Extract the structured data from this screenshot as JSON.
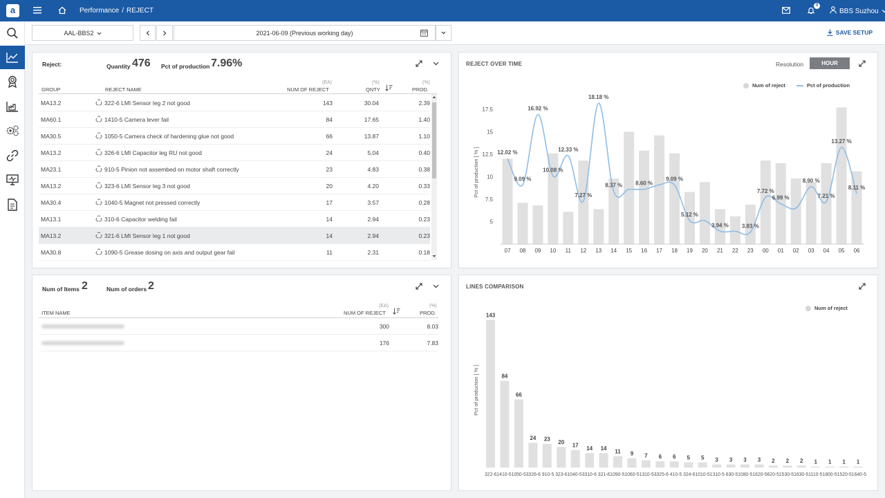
{
  "header": {
    "logo": "a",
    "breadcrumb_root": "Performance",
    "breadcrumb_sep": "/",
    "breadcrumb_current": "REJECT",
    "notifications_count": "0",
    "user": "BBS Suzhou"
  },
  "toolbar": {
    "line": "AAL-BBS2",
    "date": "2021-06-09 (Previous working day)",
    "save": "SAVE SETUP"
  },
  "reject_panel": {
    "label": "Reject:",
    "quantity_label": "Quantity",
    "quantity": "476",
    "pct_label": "Pct of production",
    "pct": "7.96%",
    "columns": {
      "group": "GROUP",
      "name": "REJECT NAME",
      "num_unit": "(EA)",
      "num": "NUM OF REJECT",
      "qnty_unit": "(%)",
      "qnty": "QNTY",
      "prod_unit": "(%)",
      "prod": "PROD."
    },
    "rows": [
      {
        "group": "MA13.2",
        "name": "322-6 LMI Sensor leg 2 not good",
        "num": "143",
        "qnty": "30.04",
        "prod": "2.39"
      },
      {
        "group": "MA60.1",
        "name": "1410-5 Camera lever fail",
        "num": "84",
        "qnty": "17.65",
        "prod": "1.40"
      },
      {
        "group": "MA30.5",
        "name": "1050-5 Camera check of hardening glue not good",
        "num": "66",
        "qnty": "13.87",
        "prod": "1.10"
      },
      {
        "group": "MA13.2",
        "name": "326-6 LMI Capacitor leg RU not good",
        "num": "24",
        "qnty": "5.04",
        "prod": "0.40"
      },
      {
        "group": "MA23.1",
        "name": "910-5 Pinion not assembed on motor shaft correctly",
        "num": "23",
        "qnty": "4.83",
        "prod": "0.38"
      },
      {
        "group": "MA13.2",
        "name": "323-6 LMI Sensor leg 3 not good",
        "num": "20",
        "qnty": "4.20",
        "prod": "0.33"
      },
      {
        "group": "MA30.4",
        "name": "1040-5 Magnet not pressed correctly",
        "num": "17",
        "qnty": "3.57",
        "prod": "0.28"
      },
      {
        "group": "MA13.1",
        "name": "310-6 Capacitor welding fail",
        "num": "14",
        "qnty": "2.94",
        "prod": "0.23"
      },
      {
        "group": "MA13.2",
        "name": "321-6 LMI Sensor leg 1 not good",
        "num": "14",
        "qnty": "2.94",
        "prod": "0.23"
      },
      {
        "group": "MA30.8",
        "name": "1090-5 Grease dosing on axis and output gear fail",
        "num": "11",
        "qnty": "2.31",
        "prod": "0.18"
      }
    ]
  },
  "items_panel": {
    "items_label": "Num of Items",
    "items": "2",
    "orders_label": "Num of orders",
    "orders": "2",
    "columns": {
      "name": "ITEM NAME",
      "num_unit": "(EA)",
      "num": "NUM OF REJECT",
      "prod_unit": "(%)",
      "prod": "PROD."
    },
    "rows": [
      {
        "num": "300",
        "prod": "8.03"
      },
      {
        "num": "176",
        "prod": "7.83"
      }
    ]
  },
  "time_panel": {
    "title": "REJECT OVER TIME",
    "resolution_label": "Resolution",
    "resolution": "HOUR"
  },
  "lines_panel": {
    "title": "LINES COMPARISON"
  },
  "chart_data": [
    {
      "type": "bar",
      "title": "REJECT OVER TIME",
      "ylabel": "Pct of production [ % ]",
      "yticks": [
        "5",
        "7.5",
        "10",
        "12.5",
        "15",
        "17.5"
      ],
      "ylim": [
        2.5,
        18.5
      ],
      "categories": [
        "07",
        "08",
        "09",
        "10",
        "11",
        "12",
        "13",
        "14",
        "15",
        "16",
        "17",
        "18",
        "19",
        "20",
        "21",
        "22",
        "23",
        "00",
        "01",
        "02",
        "03",
        "04",
        "05",
        "06"
      ],
      "series": [
        {
          "name": "Num of reject",
          "type": "bar",
          "color": "#e0e0e0",
          "values": [
            12.0,
            7.1,
            6.8,
            12.6,
            6.1,
            11.8,
            6.4,
            9.8,
            15.0,
            12.9,
            14.6,
            12.6,
            8.3,
            9.4,
            6.4,
            5.6,
            6.9,
            11.8,
            11.5,
            9.8,
            9.4,
            11.5,
            17.7,
            10.6
          ]
        },
        {
          "name": "Pct of production",
          "type": "line",
          "color": "#8fbce6",
          "values": [
            12.02,
            9.09,
            16.92,
            10.08,
            12.33,
            7.27,
            18.18,
            8.37,
            8.6,
            8.6,
            9.09,
            9.09,
            5.12,
            5.12,
            3.94,
            3.94,
            3.83,
            7.72,
            6.99,
            6.5,
            8.9,
            7.21,
            13.27,
            8.11
          ]
        }
      ],
      "labels": [
        {
          "index": 0,
          "text": "12.02 %"
        },
        {
          "index": 1,
          "text": "9.09 %"
        },
        {
          "index": 2,
          "text": "16.92 %"
        },
        {
          "index": 3,
          "text": "10.08 %"
        },
        {
          "index": 4,
          "text": "12.33 %"
        },
        {
          "index": 5,
          "text": "7.27 %"
        },
        {
          "index": 6,
          "text": "18.18 %"
        },
        {
          "index": 7,
          "text": "8.37 %"
        },
        {
          "index": 9,
          "text": "8.60 %"
        },
        {
          "index": 11,
          "text": "9.09 %"
        },
        {
          "index": 12,
          "text": "5.12 %"
        },
        {
          "index": 14,
          "text": "3.94 %"
        },
        {
          "index": 16,
          "text": "3.83 %"
        },
        {
          "index": 17,
          "text": "7.72 %"
        },
        {
          "index": 18,
          "text": "6.99 %"
        },
        {
          "index": 20,
          "text": "8.90 %"
        },
        {
          "index": 21,
          "text": "7.21 %"
        },
        {
          "index": 22,
          "text": "13.27 %"
        },
        {
          "index": 23,
          "text": "8.11 %"
        }
      ],
      "legend": "top-right"
    },
    {
      "type": "bar",
      "title": "LINES COMPARISON",
      "ylabel": "Pct of production [ % ]",
      "ylim": [
        0,
        150
      ],
      "categories": [
        "322-6",
        "1410-5",
        "1050-5",
        "326-6",
        "910-5",
        "323-6",
        "1040-5",
        "310-6",
        "321-6",
        "1090-5",
        "1060-5",
        "1310-5",
        "325-6",
        "410-5",
        "324-6",
        "1010-5",
        "1310-5",
        "630-5",
        "1080-5",
        "620-5",
        "620-5",
        "1530-5",
        "630-5",
        "1110-5",
        "1800-5",
        "520-5",
        "1640-5"
      ],
      "xtick_text": "322-61410-51050-53326-6 910-5 323-61040-53310-6 321-61090-51060-51310-53325-6 410-5 324-61010-51310-5 630-51080-51620-5620-51530-51630-51110-51800-51520-51640-5",
      "series": [
        {
          "name": "Num of reject",
          "color": "#e0e0e0",
          "values": [
            143,
            84,
            66,
            24,
            23,
            20,
            17,
            14,
            14,
            11,
            9,
            7,
            6,
            6,
            5,
            5,
            3,
            3,
            3,
            3,
            2,
            2,
            2,
            1,
            1,
            1,
            1
          ]
        }
      ],
      "legend": "top-right"
    }
  ]
}
